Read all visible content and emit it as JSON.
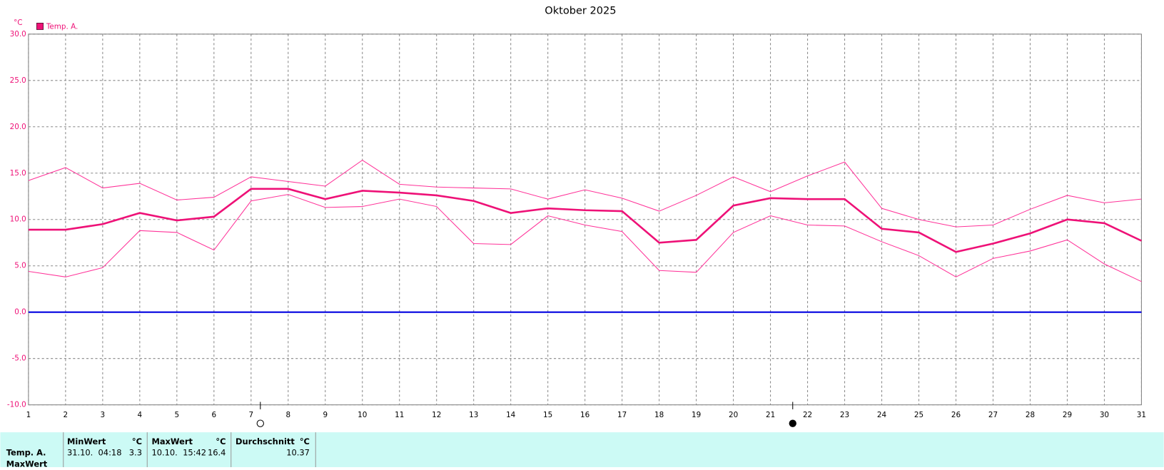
{
  "chart_data": {
    "type": "line",
    "title": "Oktober 2025",
    "y_unit": "°C",
    "x": [
      1,
      2,
      3,
      4,
      5,
      6,
      7,
      8,
      9,
      10,
      11,
      12,
      13,
      14,
      15,
      16,
      17,
      18,
      19,
      20,
      21,
      22,
      23,
      24,
      25,
      26,
      27,
      28,
      29,
      30,
      31
    ],
    "xlim": [
      1,
      31
    ],
    "xticks": [
      1,
      2,
      3,
      4,
      5,
      6,
      7,
      8,
      9,
      10,
      11,
      12,
      13,
      14,
      15,
      16,
      17,
      18,
      19,
      20,
      21,
      22,
      23,
      24,
      25,
      26,
      27,
      28,
      29,
      30,
      31
    ],
    "ylim": [
      -10,
      30
    ],
    "yticks": [
      {
        "value": -10,
        "label": "-10.0"
      },
      {
        "value": -5,
        "label": "-5.0"
      },
      {
        "value": 0,
        "label": "0.0"
      },
      {
        "value": 5,
        "label": "5.0"
      },
      {
        "value": 10,
        "label": "10.0"
      },
      {
        "value": 15,
        "label": "15.0"
      },
      {
        "value": 20,
        "label": "20.0"
      },
      {
        "value": 25,
        "label": "25.0"
      },
      {
        "value": 30,
        "label": "30.0"
      }
    ],
    "grid": true,
    "zero_line_color": "#0000e0",
    "series": [
      {
        "name": "Temp. A.",
        "color": "#ee1177",
        "width": 2.5,
        "values": [
          8.9,
          8.9,
          9.5,
          10.7,
          9.9,
          10.3,
          13.3,
          13.3,
          12.2,
          13.1,
          12.9,
          12.6,
          12.0,
          10.7,
          11.2,
          11.0,
          10.9,
          7.5,
          7.8,
          11.5,
          12.3,
          12.2,
          12.2,
          9.0,
          8.6,
          6.5,
          7.4,
          8.5,
          10.0,
          9.6,
          7.7
        ]
      },
      {
        "color": "#ff3399",
        "width": 1,
        "values": [
          14.2,
          15.6,
          13.4,
          13.9,
          12.1,
          12.4,
          14.6,
          14.1,
          13.6,
          16.4,
          13.8,
          13.5,
          13.4,
          13.3,
          12.2,
          13.2,
          12.3,
          10.9,
          12.6,
          14.6,
          13.0,
          14.7,
          16.2,
          11.2,
          10.0,
          9.2,
          9.4,
          11.1,
          12.6,
          11.8,
          12.2
        ]
      },
      {
        "color": "#ff3399",
        "width": 1,
        "values": [
          4.4,
          3.8,
          4.8,
          8.8,
          8.6,
          6.7,
          12.0,
          12.7,
          11.3,
          11.4,
          12.2,
          11.4,
          7.4,
          7.3,
          10.4,
          9.4,
          8.7,
          4.5,
          4.3,
          8.6,
          10.4,
          9.4,
          9.3,
          7.6,
          6.1,
          3.8,
          5.8,
          6.6,
          7.8,
          5.2,
          3.3
        ]
      }
    ],
    "moon_markers": [
      {
        "x": 7.25,
        "filled": false
      },
      {
        "x": 21.6,
        "filled": true
      }
    ]
  },
  "table": {
    "header": [
      "MinWert",
      "°C",
      "MaxWert",
      "°C",
      "Durchschnitt",
      "°C"
    ],
    "rows": [
      [
        "Temp. A.",
        "31.10.  04:18",
        "3.3",
        "10.10.  15:42",
        "16.4",
        "10.37"
      ],
      [
        "MaxWert"
      ]
    ]
  }
}
